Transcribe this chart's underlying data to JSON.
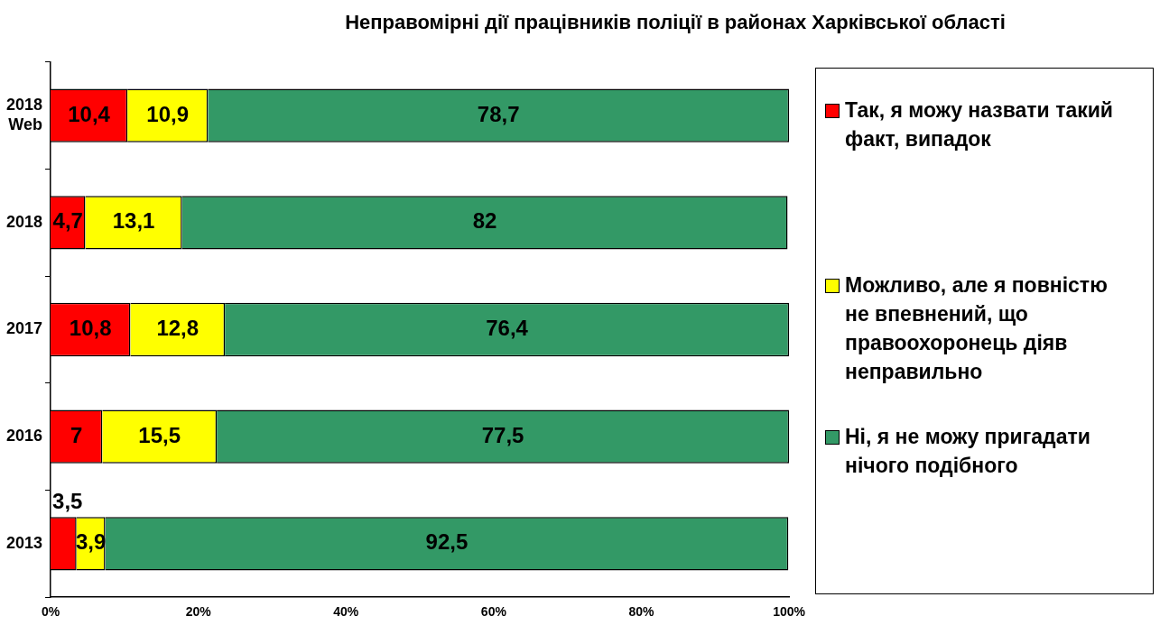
{
  "chart_data": {
    "type": "bar",
    "orientation": "horizontal",
    "stacked": true,
    "title": "Неправомірні дії працівників поліції в районах Харківської області",
    "categories": [
      "2018 Web",
      "2018",
      "2017",
      "2016",
      "2013"
    ],
    "series": [
      {
        "name": "Так, я можу назвати такий факт, випадок",
        "color": "#ff0000",
        "values": [
          10.4,
          4.7,
          10.8,
          7,
          3.5
        ],
        "value_labels": [
          "10,4",
          "4,7",
          "10,8",
          "7",
          "3,5"
        ]
      },
      {
        "name": "Можливо, але я повністю не впевнений, що правоохоронець діяв неправильно",
        "color": "#ffff00",
        "values": [
          10.9,
          13.1,
          12.8,
          15.5,
          3.9
        ],
        "value_labels": [
          "10,9",
          "13,1",
          "12,8",
          "15,5",
          "3,9"
        ]
      },
      {
        "name": "Ні, я не можу пригадати нічого подібного",
        "color": "#339966",
        "values": [
          78.7,
          82,
          76.4,
          77.5,
          92.5
        ],
        "value_labels": [
          "78,7",
          "82",
          "76,4",
          "77,5",
          "92,5"
        ]
      }
    ],
    "xlim": [
      0,
      100
    ],
    "xticks": [
      {
        "value": 0,
        "label": "0%"
      },
      {
        "value": 20,
        "label": "20%"
      },
      {
        "value": 40,
        "label": "40%"
      },
      {
        "value": 60,
        "label": "60%"
      },
      {
        "value": 80,
        "label": "80%"
      },
      {
        "value": 100,
        "label": "100%"
      }
    ],
    "grid": false,
    "legend": "right"
  }
}
